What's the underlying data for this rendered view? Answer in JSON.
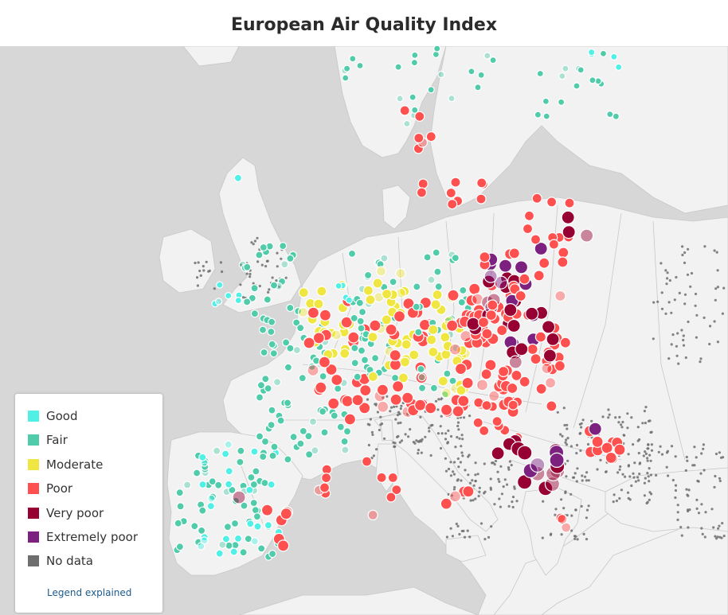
{
  "header": {
    "title": "European Air Quality Index"
  },
  "legend": {
    "items": [
      {
        "key": "good",
        "label": "Good",
        "color": "#50f0e6"
      },
      {
        "key": "fair",
        "label": "Fair",
        "color": "#50ccaa"
      },
      {
        "key": "moderate",
        "label": "Moderate",
        "color": "#f0e641"
      },
      {
        "key": "poor",
        "label": "Poor",
        "color": "#ff5050"
      },
      {
        "key": "very_poor",
        "label": "Very poor",
        "color": "#960032"
      },
      {
        "key": "extremely_poor",
        "label": "Extremely poor",
        "color": "#7d2181"
      },
      {
        "key": "no_data",
        "label": "No data",
        "color": "#6e6e6e"
      }
    ],
    "link_label": "Legend explained"
  },
  "map": {
    "land_color": "#f2f2f2",
    "sea_color": "#d7d7d7",
    "border_color": "#c8c8c8"
  }
}
